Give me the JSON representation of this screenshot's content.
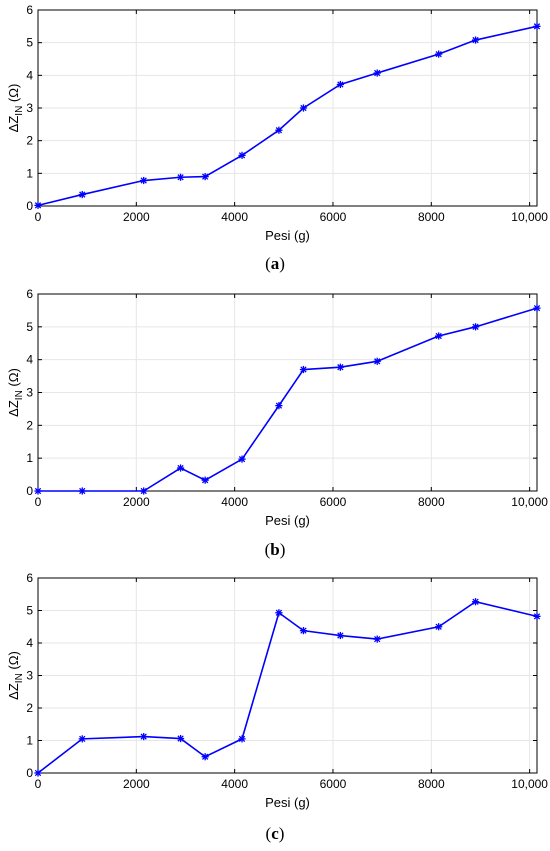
{
  "chart_data": [
    {
      "type": "line",
      "panel_label": "a",
      "xlabel": "Pesi (g)",
      "ylabel": "ΔZ_IN (Ω)",
      "xlim": [
        0,
        10150
      ],
      "ylim": [
        0,
        6
      ],
      "xticks": [
        "0",
        "2000",
        "4000",
        "6000",
        "8000",
        "10,000"
      ],
      "yticks": [
        "0",
        "1",
        "2",
        "3",
        "4",
        "5",
        "6"
      ],
      "grid": true,
      "color": "#0000ff",
      "x": [
        0,
        900,
        2150,
        2900,
        3400,
        4150,
        4900,
        5400,
        6150,
        6900,
        8150,
        8900,
        10150
      ],
      "y": [
        0.02,
        0.35,
        0.78,
        0.88,
        0.9,
        1.55,
        2.32,
        3.0,
        3.72,
        4.07,
        4.65,
        5.08,
        5.5
      ]
    },
    {
      "type": "line",
      "panel_label": "b",
      "xlabel": "Pesi (g)",
      "ylabel": "ΔZ_IN (Ω)",
      "xlim": [
        0,
        10150
      ],
      "ylim": [
        0,
        6
      ],
      "xticks": [
        "0",
        "2000",
        "4000",
        "6000",
        "8000",
        "10,000"
      ],
      "yticks": [
        "0",
        "1",
        "2",
        "3",
        "4",
        "5",
        "6"
      ],
      "grid": true,
      "color": "#0000ff",
      "x": [
        0,
        900,
        2150,
        2900,
        3400,
        4150,
        4900,
        5400,
        6150,
        6900,
        8150,
        8900,
        10150
      ],
      "y": [
        0,
        0,
        0,
        0.7,
        0.33,
        0.97,
        2.6,
        3.7,
        3.77,
        3.95,
        4.72,
        5.0,
        5.57
      ]
    },
    {
      "type": "line",
      "panel_label": "c",
      "xlabel": "Pesi (g)",
      "ylabel": "ΔZ_IN (Ω)",
      "xlim": [
        0,
        10150
      ],
      "ylim": [
        0,
        6
      ],
      "xticks": [
        "0",
        "2000",
        "4000",
        "6000",
        "8000",
        "10,000"
      ],
      "yticks": [
        "0",
        "1",
        "2",
        "3",
        "4",
        "5",
        "6"
      ],
      "grid": true,
      "color": "#0000ff",
      "x": [
        0,
        900,
        2150,
        2900,
        3400,
        4150,
        4900,
        5400,
        6150,
        6900,
        8150,
        8900,
        10150
      ],
      "y": [
        0,
        1.05,
        1.12,
        1.06,
        0.5,
        1.05,
        4.93,
        4.38,
        4.23,
        4.12,
        4.5,
        5.27,
        4.82
      ]
    }
  ]
}
